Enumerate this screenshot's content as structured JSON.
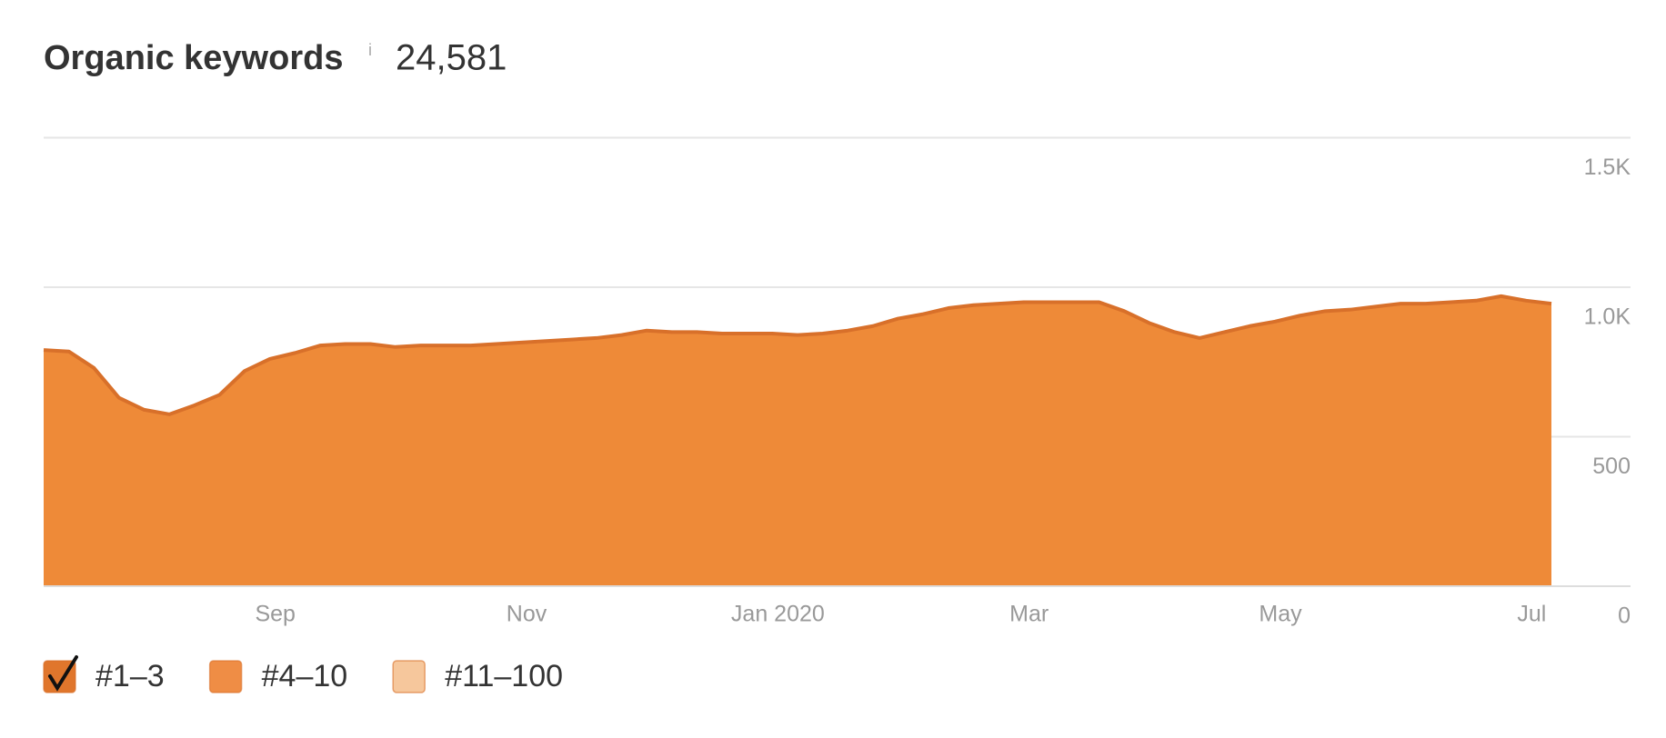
{
  "chart_data": {
    "type": "area",
    "title": "Organic keywords",
    "info": "i",
    "total": "24,581",
    "categories": [
      null,
      null,
      null,
      null,
      null,
      null,
      null,
      null,
      null,
      "Sep",
      null,
      null,
      null,
      null,
      null,
      null,
      null,
      null,
      null,
      "Nov",
      null,
      null,
      null,
      null,
      null,
      null,
      null,
      null,
      null,
      "Jan 2020",
      null,
      null,
      null,
      null,
      null,
      null,
      null,
      null,
      null,
      "Mar",
      null,
      null,
      null,
      null,
      null,
      null,
      null,
      null,
      null,
      "May",
      null,
      null,
      null,
      null,
      null,
      null,
      null,
      null,
      null,
      "Jul",
      null
    ],
    "series": [
      {
        "color": "#ee8a38",
        "line_color": "#d8702a",
        "values": [
          790,
          785,
          730,
          630,
          590,
          575,
          605,
          640,
          720,
          760,
          780,
          805,
          810,
          810,
          800,
          805,
          805,
          805,
          810,
          815,
          820,
          825,
          830,
          840,
          855,
          850,
          850,
          845,
          845,
          845,
          840,
          845,
          855,
          870,
          895,
          910,
          930,
          940,
          945,
          950,
          950,
          950,
          950,
          920,
          880,
          850,
          830,
          850,
          870,
          885,
          905,
          920,
          925,
          935,
          945,
          945,
          950,
          955,
          970,
          955,
          945
        ]
      }
    ],
    "legend": [
      {
        "label": "#1–3",
        "color": "#e0762c",
        "checked": true
      },
      {
        "label": "#4–10",
        "color": "#ef8d45",
        "checked": false
      },
      {
        "label": "#11–100",
        "color": "#f6c79c",
        "checked": false
      }
    ],
    "ylim": [
      0,
      1500
    ],
    "yticks": [
      0,
      500,
      {
        "value": 1000,
        "label": "1.0K"
      },
      {
        "value": 1500,
        "label": "1.5K"
      }
    ],
    "grid": true
  }
}
